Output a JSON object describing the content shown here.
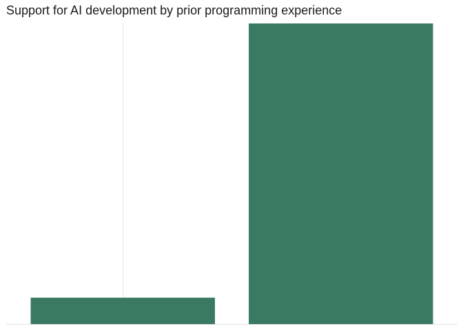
{
  "chart_data": {
    "type": "bar",
    "title": "Support for AI development by prior programming experience",
    "xlabel": "",
    "ylabel": "",
    "categories": [
      "",
      ""
    ],
    "values": [
      9,
      100
    ],
    "ylim": [
      0,
      100
    ],
    "grid": "vertical-major",
    "legend": "none",
    "bar_color": "#3a7a62"
  }
}
